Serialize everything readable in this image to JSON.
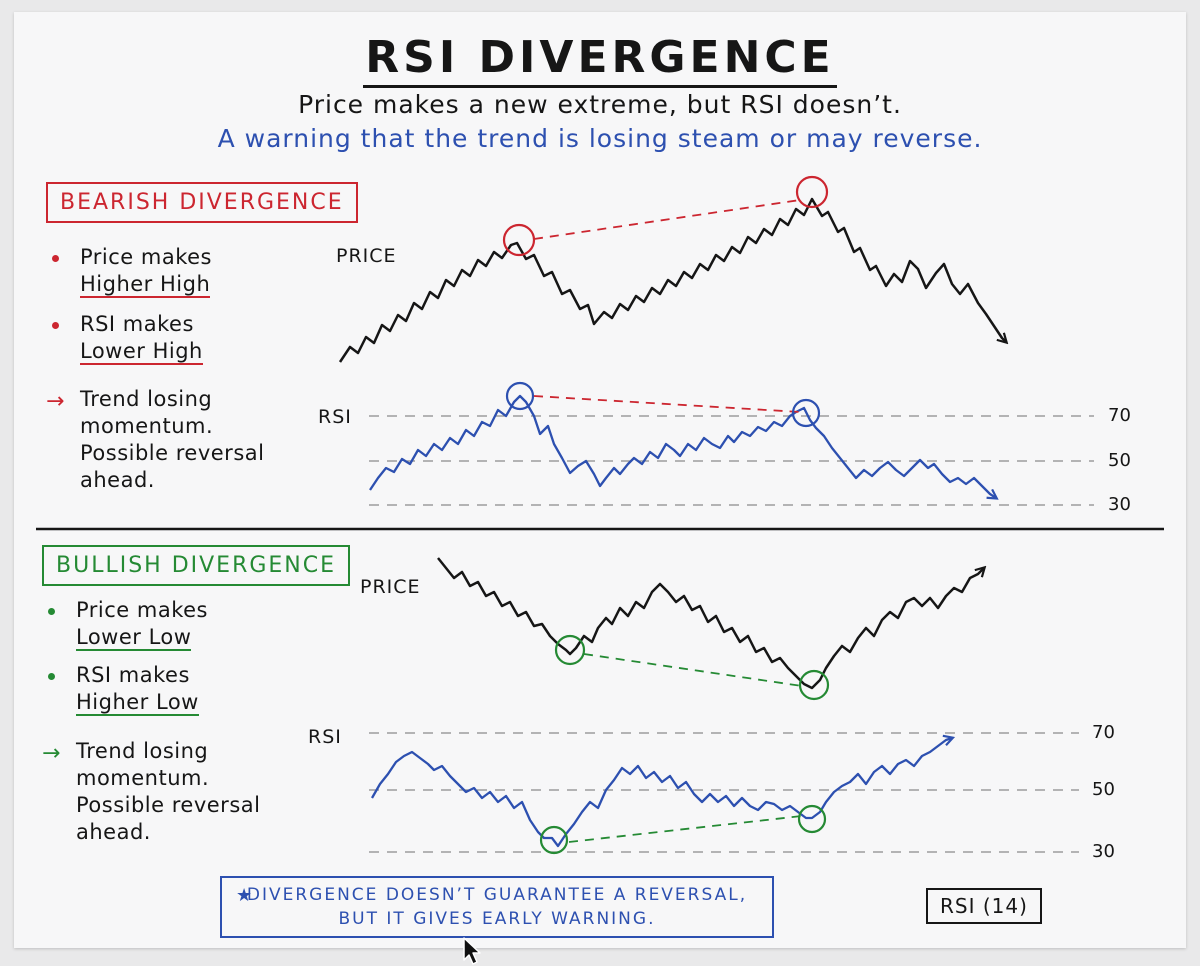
{
  "title": "RSI DIVERGENCE",
  "subtitle": "Price makes a new extreme, but RSI doesn’t.",
  "subtitle2": "A warning that the trend is losing steam or may reverse.",
  "bearish": {
    "badge": "BEARISH DIVERGENCE",
    "b1a": "Price makes",
    "b1b": "Higher High",
    "b2a": "RSI makes",
    "b2b": "Lower High",
    "b3a": "Trend losing",
    "b3b": "momentum.",
    "b3c": "Possible reversal",
    "b3d": "ahead.",
    "price_label": "PRICE",
    "rsi_label": "RSI"
  },
  "bullish": {
    "badge": "BULLISH DIVERGENCE",
    "b1a": "Price makes",
    "b1b": "Lower Low",
    "b2a": "RSI makes",
    "b2b": "Higher Low",
    "b3a": "Trend losing",
    "b3b": "momentum.",
    "b3c": "Possible reversal",
    "b3d": "ahead.",
    "price_label": "PRICE",
    "rsi_label": "RSI"
  },
  "levels": {
    "l70": "70",
    "l50": "50",
    "l30": "30"
  },
  "note": {
    "line1": "DIVERGENCE DOESN’T GUARANTEE A REVERSAL,",
    "line2": "BUT IT GIVES EARLY WARNING."
  },
  "rsi_period": "RSI (14)",
  "colors": {
    "bearish": "#cc2630",
    "bullish": "#258a34",
    "rsi_line": "#2d50b0",
    "price_line": "#161616"
  },
  "icons": {
    "note_star": "star-icon",
    "bullet_arrow": "arrow-right-icon",
    "cursor": "mouse-cursor-icon"
  }
}
